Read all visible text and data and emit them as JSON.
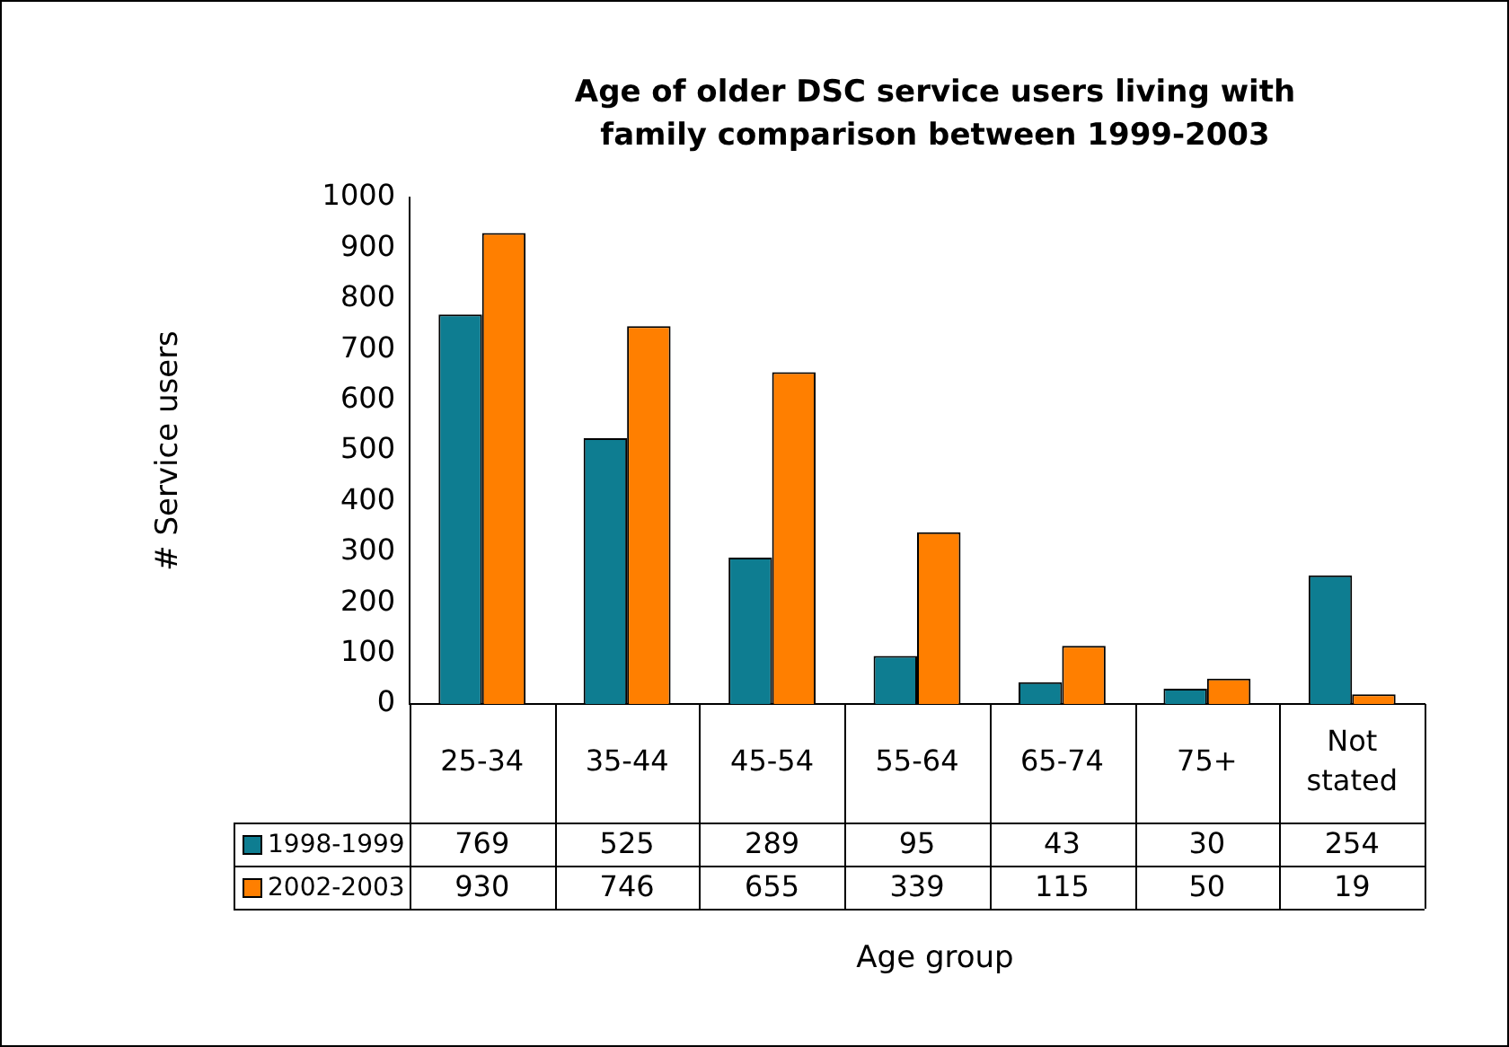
{
  "chart_data": {
    "type": "bar",
    "title": "Age of older DSC service users living with family comparison between 1999-2003",
    "xlabel": "Age group",
    "ylabel": "# Service users",
    "categories": [
      "25-34",
      "35-44",
      "45-54",
      "55-64",
      "65-74",
      "75+",
      "Not stated"
    ],
    "series": [
      {
        "name": "1998-1999",
        "color": "#0e7d91",
        "values": [
          769,
          525,
          289,
          95,
          43,
          30,
          254
        ]
      },
      {
        "name": "2002-2003",
        "color": "#ff7f00",
        "values": [
          930,
          746,
          655,
          339,
          115,
          50,
          19
        ]
      }
    ],
    "ylim": [
      0,
      1000
    ],
    "yticks": [
      0,
      100,
      200,
      300,
      400,
      500,
      600,
      700,
      800,
      900,
      1000
    ],
    "grid": false,
    "legend": "bottom left",
    "data_labels": true
  }
}
